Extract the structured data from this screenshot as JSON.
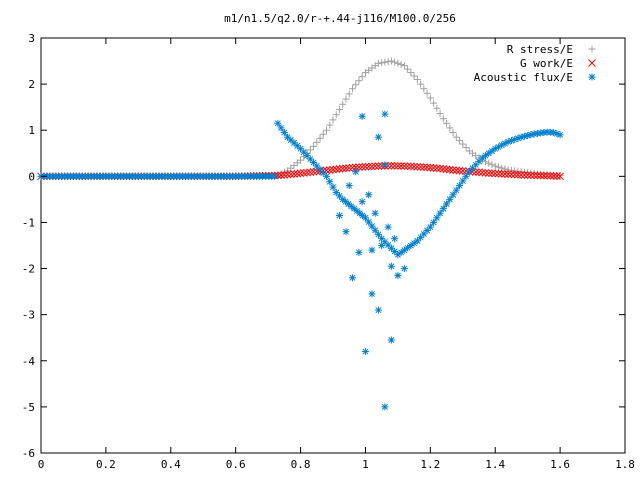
{
  "chart_data": {
    "type": "scatter",
    "title": "m1/n1.5/q2.0/r-+.44-j116/M100.0/256",
    "xlabel": "",
    "ylabel": "",
    "xlim": [
      0,
      1.8
    ],
    "ylim": [
      -6,
      3
    ],
    "xticks": [
      "0",
      "0.2",
      "0.4",
      "0.6",
      "0.8",
      "1",
      "1.2",
      "1.4",
      "1.6",
      "1.8"
    ],
    "yticks": [
      "3",
      "2",
      "1",
      "0",
      "-1",
      "-2",
      "-3",
      "-4",
      "-5",
      "-6"
    ],
    "grid": false,
    "legend_position": "top-right",
    "series": [
      {
        "name": "R stress/E",
        "marker": "plus",
        "color": "#a0a0a0",
        "x": [
          0.0,
          0.2,
          0.4,
          0.6,
          0.73,
          0.76,
          0.8,
          0.84,
          0.88,
          0.92,
          0.96,
          1.0,
          1.04,
          1.08,
          1.12,
          1.16,
          1.2,
          1.24,
          1.28,
          1.32,
          1.36,
          1.4,
          1.44,
          1.48,
          1.52,
          1.56,
          1.6
        ],
        "y": [
          0.0,
          0.0,
          0.0,
          0.0,
          0.02,
          0.12,
          0.35,
          0.65,
          1.0,
          1.45,
          1.9,
          2.25,
          2.45,
          2.5,
          2.4,
          2.1,
          1.7,
          1.25,
          0.85,
          0.55,
          0.35,
          0.22,
          0.14,
          0.1,
          0.06,
          0.03,
          0.02
        ]
      },
      {
        "name": "G work/E",
        "marker": "cross",
        "color": "#ff0000",
        "x": [
          0.0,
          0.2,
          0.4,
          0.6,
          0.73,
          0.78,
          0.83,
          0.88,
          0.93,
          0.98,
          1.03,
          1.08,
          1.13,
          1.18,
          1.23,
          1.28,
          1.33,
          1.38,
          1.43,
          1.48,
          1.53,
          1.58,
          1.6
        ],
        "y": [
          0.0,
          0.0,
          0.0,
          0.0,
          0.02,
          0.05,
          0.09,
          0.13,
          0.17,
          0.2,
          0.22,
          0.23,
          0.22,
          0.2,
          0.17,
          0.13,
          0.1,
          0.07,
          0.05,
          0.03,
          0.02,
          0.01,
          0.0
        ]
      },
      {
        "name": "Acoustic flux/E",
        "marker": "star",
        "color": "#0080d0",
        "x": [
          0.0,
          0.2,
          0.4,
          0.6,
          0.72,
          0.73,
          0.76,
          0.8,
          0.84,
          0.88,
          0.91,
          0.93,
          1.0,
          1.05,
          1.1,
          1.13,
          1.16,
          1.2,
          1.24,
          1.28,
          1.32,
          1.36,
          1.4,
          1.44,
          1.48,
          1.52,
          1.56,
          1.58,
          1.6,
          0.92,
          0.95,
          0.97,
          0.99,
          1.01,
          1.03,
          1.05,
          1.07,
          1.09,
          0.94,
          0.96,
          0.98,
          1.0,
          1.02,
          1.04,
          1.06,
          1.08,
          1.1,
          1.12,
          1.04,
          1.06,
          0.99,
          1.02,
          1.06,
          1.08
        ],
        "y": [
          0.0,
          0.0,
          0.0,
          0.0,
          0.0,
          1.15,
          0.85,
          0.6,
          0.3,
          0.0,
          -0.35,
          -0.5,
          -0.9,
          -1.35,
          -1.7,
          -1.55,
          -1.4,
          -1.1,
          -0.7,
          -0.3,
          0.1,
          0.4,
          0.6,
          0.75,
          0.85,
          0.92,
          0.96,
          0.95,
          0.9,
          -0.85,
          -0.2,
          0.1,
          -0.55,
          -0.4,
          -0.8,
          -1.5,
          -1.1,
          -1.35,
          -1.2,
          -2.2,
          -1.65,
          -3.8,
          -2.55,
          -2.9,
          -5.0,
          -3.55,
          -2.15,
          -2.0,
          0.85,
          1.35,
          1.3,
          -1.6,
          0.25,
          -1.95
        ]
      }
    ]
  }
}
